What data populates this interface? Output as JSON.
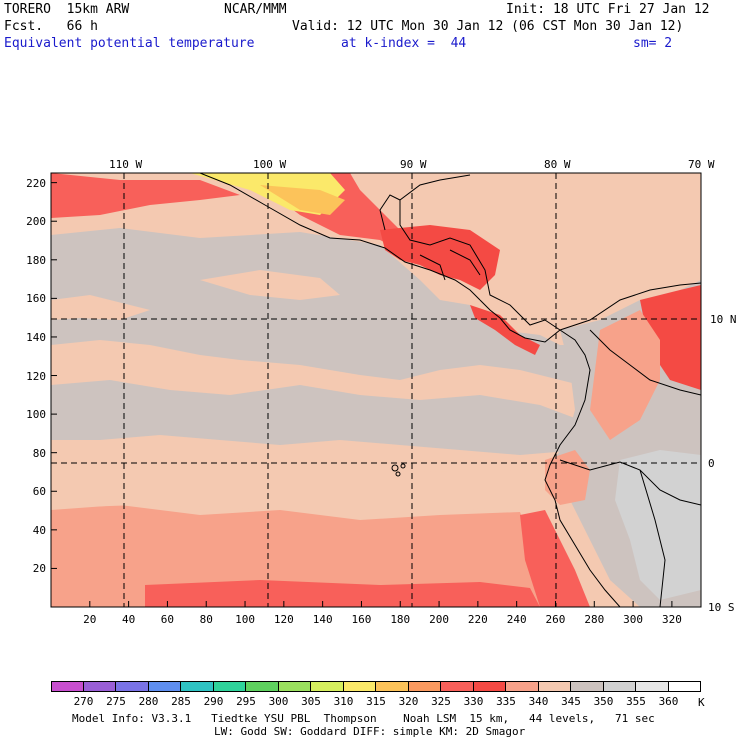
{
  "header": {
    "model": "TORERO  15km ARW",
    "org": "NCAR/MMM",
    "init": "Init: 18 UTC Fri 27 Jan 12",
    "fcst": "Fcst.   66 h",
    "valid": "Valid: 12 UTC Mon 30 Jan 12 (06 CST Mon 30 Jan 12)",
    "field": "Equivalent potential temperature",
    "level": "at k-index =  44",
    "smooth": "sm= 2"
  },
  "axes": {
    "top_lon_labels": [
      "110 W",
      "100 W",
      "90 W",
      "80 W",
      "70 W"
    ],
    "right_lat_labels": [
      "10 N",
      "0",
      "10 S"
    ],
    "x_ticks": [
      "20",
      "40",
      "60",
      "80",
      "100",
      "120",
      "140",
      "160",
      "180",
      "200",
      "220",
      "240",
      "260",
      "280",
      "300",
      "320"
    ],
    "y_ticks": [
      "20",
      "40",
      "60",
      "80",
      "100",
      "120",
      "140",
      "160",
      "180",
      "200",
      "220"
    ]
  },
  "colorbar": {
    "labels": [
      "270",
      "275",
      "280",
      "285",
      "290",
      "295",
      "300",
      "305",
      "310",
      "315",
      "320",
      "325",
      "330",
      "335",
      "340",
      "345",
      "350",
      "355",
      "360"
    ],
    "unit": "K",
    "colors": [
      "#c84fcf",
      "#9a5fd6",
      "#7a73e6",
      "#5f8ff0",
      "#2fc3c3",
      "#2fd39b",
      "#5fd15f",
      "#9be05f",
      "#d6ef5f",
      "#fbe96a",
      "#fcc35a",
      "#fa9a60",
      "#f8605a",
      "#f44a44",
      "#f7a28a",
      "#f4c9b1",
      "#cdc3bf",
      "#d2d2d2",
      "#e6e6e6",
      "#ffffff"
    ]
  },
  "footer": {
    "line1": "Model Info: V3.3.1   Tiedtke YSU PBL  Thompson    Noah LSM  15 km,   44 levels,   71 sec",
    "line2": "LW: Godd SW: Goddard DIFF: simple KM: 2D Smagor"
  }
}
